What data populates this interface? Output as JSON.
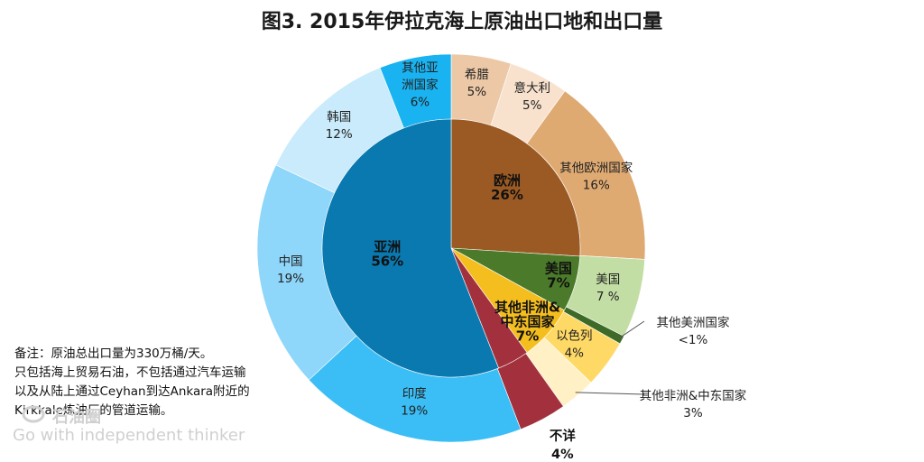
{
  "title": "图3. 2015年伊拉克海上原油出口地和出口量",
  "notes": [
    "备注：原油总出口量为330万桶/天。",
    "只包括海上贸易石油，不包括通过汽车运输",
    "以及从陆上通过Ceyhan到达Ankara附近的",
    "Kirkkale炼油厂的管道运输。"
  ],
  "watermark": {
    "text": "Go with independent thinker",
    "cn": "石油圈"
  },
  "chart_data": {
    "type": "pie",
    "inner": [
      {
        "label": "欧洲",
        "value_label": "26%",
        "value": 26,
        "color": "#9B5A23"
      },
      {
        "label": "美国",
        "value_label": "7%",
        "value": 7,
        "color": "#4A7A2A"
      },
      {
        "label": "其他非洲&中东国家",
        "label_lines": [
          "其他非洲&",
          "中东国家"
        ],
        "value_label": "7%",
        "value": 7,
        "color": "#F5BE1F"
      },
      {
        "label": "不详",
        "value_label": "4%",
        "value": 4,
        "color": "#A2313D"
      },
      {
        "label": "亚洲",
        "value_label": "56%",
        "value": 56,
        "color": "#0A79B0"
      }
    ],
    "outer": [
      {
        "label": "希腊",
        "value_label": "5%",
        "value": 5,
        "color": "#ECC8A6"
      },
      {
        "label": "意大利",
        "value_label": "5%",
        "value": 5,
        "color": "#F8E2CE"
      },
      {
        "label": "其他欧洲国家",
        "value_label": "16%",
        "value": 16,
        "color": "#DFAA72"
      },
      {
        "label": "美国",
        "value_label": "7 %",
        "value": 6.6,
        "color": "#C3DEA4"
      },
      {
        "label": "其他美洲国家",
        "value_label": "<1%",
        "value": 0.7,
        "color": "#3D6A27"
      },
      {
        "label": "以色列",
        "value_label": "4%",
        "value": 4,
        "color": "#FFD966"
      },
      {
        "label": "其他非洲&中东国家",
        "value_label": "3%",
        "value": 3,
        "color": "#FFF0C6"
      },
      {
        "label": "不详",
        "value_label": "",
        "value": 4,
        "color": "#A2313D"
      },
      {
        "label": "印度",
        "value_label": "19%",
        "value": 19,
        "color": "#3ABEF5"
      },
      {
        "label": "中国",
        "value_label": "19%",
        "value": 19,
        "color": "#8ED6FA"
      },
      {
        "label": "韩国",
        "value_label": "12%",
        "value": 12,
        "color": "#C9EBFB"
      },
      {
        "label": "其他亚洲国家",
        "label_lines": [
          "其他亚",
          "洲国家"
        ],
        "value_label": "6%",
        "value": 6,
        "color": "#19B3F1"
      }
    ]
  }
}
